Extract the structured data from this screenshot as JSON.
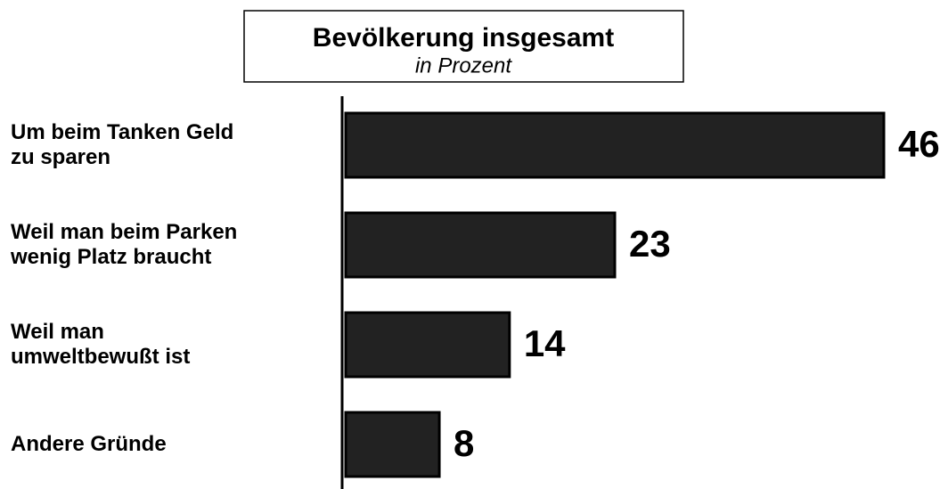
{
  "chart_data": {
    "type": "barh",
    "title": "Bevölkerung insgesamt",
    "subtitle": "in Prozent",
    "categories": [
      "Um beim Tanken Geld\nzu sparen",
      "Weil man beim Parken\nwenig Platz braucht",
      "Weil man\numweltbewußt ist",
      "Andere Gründe"
    ],
    "values": [
      46,
      23,
      14,
      8
    ],
    "color": "#222222"
  }
}
